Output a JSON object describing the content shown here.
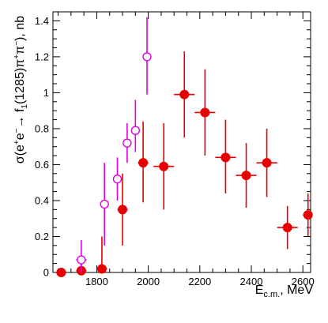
{
  "chart_data": {
    "type": "scatter",
    "title": "",
    "xlabel": {
      "main": "E",
      "sub": "c.m.",
      "tail": ", MeV"
    },
    "ylabel": {
      "p1": "σ(e",
      "sup1": "+",
      "p2": "e",
      "sup2": "−",
      "p3": "→ f",
      "sub1": "1",
      "p4": "(1285)π",
      "sup3": "+",
      "p5": "π",
      "sup4": "−",
      "p6": "), nb"
    },
    "xlim": [
      1630,
      2630
    ],
    "ylim": [
      0,
      1.45
    ],
    "xticks": [
      1800,
      2000,
      2200,
      2400,
      2600
    ],
    "xtick_labels": [
      "1800",
      "2000",
      "2200",
      "2400",
      "2600"
    ],
    "yticks": [
      0,
      0.2,
      0.4,
      0.6,
      0.8,
      1,
      1.2,
      1.4
    ],
    "ytick_labels": [
      "0",
      "0.2",
      "0.4",
      "0.6",
      "0.8",
      "1",
      "1.2",
      "1.4"
    ],
    "grid": false,
    "series": [
      {
        "color": "#e60000",
        "marker": "filled-circle",
        "x": [
          1662,
          1740,
          1820,
          1900,
          1980,
          2060,
          2140,
          2220,
          2300,
          2380,
          2460,
          2540,
          2620
        ],
        "y": [
          0.0,
          0.01,
          0.02,
          0.35,
          0.61,
          0.59,
          0.99,
          0.89,
          0.64,
          0.54,
          0.61,
          0.25,
          0.32
        ],
        "xerr": [
          20,
          20,
          20,
          20,
          20,
          40,
          40,
          40,
          40,
          40,
          40,
          40,
          20
        ],
        "yerr_low": [
          0.0,
          0.01,
          0.02,
          0.2,
          0.22,
          0.24,
          0.24,
          0.24,
          0.2,
          0.18,
          0.19,
          0.12,
          0.12
        ],
        "yerr_high": [
          0.0,
          0.04,
          0.18,
          0.2,
          0.23,
          0.24,
          0.24,
          0.24,
          0.21,
          0.18,
          0.19,
          0.12,
          0.12
        ]
      },
      {
        "color": "#e000e0",
        "marker": "open-circle",
        "x": [
          1740,
          1830,
          1880,
          1918,
          1950,
          1995
        ],
        "y": [
          0.07,
          0.38,
          0.52,
          0.72,
          0.79,
          1.2
        ],
        "xerr": [
          20,
          10,
          10,
          10,
          10,
          10
        ],
        "yerr_low": [
          0.07,
          0.23,
          0.12,
          0.11,
          0.12,
          0.21
        ],
        "yerr_high": [
          0.11,
          0.23,
          0.12,
          0.11,
          0.17,
          0.22
        ]
      }
    ]
  }
}
